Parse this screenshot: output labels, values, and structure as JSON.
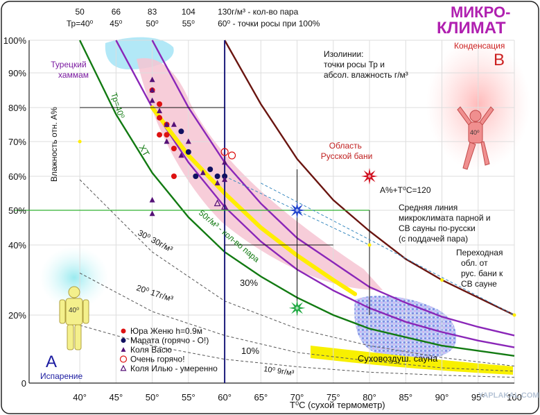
{
  "chart_data": {
    "type": "line",
    "title_line1": "МИКРО-",
    "title_line2": "КЛИМАТ",
    "xlabel": "T⁰C (сухой термометр)",
    "ylabel": "Влажность отн. A%",
    "x_ticks": [
      "40°",
      "45°",
      "50°",
      "55°",
      "60°",
      "65°",
      "70°",
      "75°",
      "80°",
      "85°",
      "90°",
      "95°",
      "100"
    ],
    "y_ticks": [
      "100%",
      "90%",
      "80%",
      "70%",
      "60%",
      "50%",
      "40%",
      "20%",
      "0"
    ],
    "top_ticks": [
      {
        "abs": "50",
        "tp": "Тр=40⁰"
      },
      {
        "abs": "66",
        "tp": "45⁰"
      },
      {
        "abs": "83",
        "tp": "50⁰"
      },
      {
        "abs": "104",
        "tp": "55⁰"
      },
      {
        "abs": "130г/м³ - кол-во пара",
        "tp": "60⁰ - точки росы при 100%"
      }
    ],
    "zones": {
      "turkish": "Турецкий\nхаммам",
      "russian": "Область\nРусской бани",
      "dry_sauna": "Суховоздуш. сауна",
      "condensation_label": "Конденсация",
      "condensation_letter": "B",
      "evaporation_label": "Испарение",
      "evaporation_letter": "A"
    },
    "annotations": {
      "isolines": "Изолинии:\nточки росы Тр и\nабсол. влажность г/м³",
      "sum120": "A%+T⁰C=120",
      "mean_line": "Средняя линия\nмикроклимата парной и\nСВ сауны по-русски\n(с поддачей пара)",
      "transition": "Переходная\nобл. от\nрус. бани к\nСВ сауне",
      "tp40": "Тр=40⁰",
      "xt": "ХТ",
      "fifty": "50г/м³ - кол-во пара",
      "thirty": "30⁰  30г/м³",
      "twenty": "20⁰  17г/м³",
      "ten_dew": "10⁰  9г/м³",
      "pct30": "30%",
      "pct10": "10%",
      "man_temp": "40⁰"
    },
    "legend": [
      {
        "symbol": "dot-red",
        "label": "Юра Женю h=0.9м"
      },
      {
        "symbol": "dot-navy",
        "label": "Марата (горячо - О!)"
      },
      {
        "symbol": "tri-purple",
        "label": "Коля Васю"
      },
      {
        "symbol": "circle-open",
        "label": "Очень горячо!"
      },
      {
        "symbol": "tri-open",
        "label": "Коля Илью - умеренно"
      }
    ],
    "series": [
      {
        "name": "Юра Женю h=0.9м",
        "color": "#dd1111",
        "marker": "dot",
        "points": [
          [
            50,
            85
          ],
          [
            51,
            81
          ],
          [
            51,
            77
          ],
          [
            52,
            75
          ],
          [
            52,
            72
          ],
          [
            51,
            72
          ],
          [
            53,
            68
          ],
          [
            53,
            60
          ]
        ]
      },
      {
        "name": "Марата (горячо - О!)",
        "color": "#101060",
        "marker": "dot",
        "points": [
          [
            54,
            73
          ],
          [
            55,
            67
          ],
          [
            56,
            60
          ],
          [
            58,
            62
          ],
          [
            59,
            60
          ],
          [
            60,
            60
          ]
        ]
      },
      {
        "name": "Коля Васю",
        "color": "#551177",
        "marker": "tri",
        "points": [
          [
            50,
            88
          ],
          [
            50,
            85
          ],
          [
            50,
            82
          ],
          [
            51,
            79
          ],
          [
            52,
            75
          ],
          [
            53,
            75
          ],
          [
            52,
            70
          ],
          [
            50,
            53
          ],
          [
            50,
            49
          ],
          [
            54,
            66
          ],
          [
            55,
            70
          ],
          [
            57,
            61
          ],
          [
            59,
            58
          ],
          [
            60,
            59
          ],
          [
            60,
            64
          ]
        ]
      },
      {
        "name": "Очень горячо!",
        "color": "#dd1111",
        "marker": "circle-open",
        "points": [
          [
            60,
            67
          ],
          [
            61,
            66
          ]
        ]
      },
      {
        "name": "Коля Илью - умеренно",
        "color": "#551177",
        "marker": "tri-open",
        "points": [
          [
            59,
            52
          ],
          [
            60,
            51
          ]
        ]
      }
    ],
    "special_markers": [
      {
        "name": "A%+T⁰C=120",
        "color": "#d01020",
        "x": 80,
        "y": 60
      },
      {
        "name": "blue star",
        "color": "#2244cc",
        "x": 70,
        "y": 50
      },
      {
        "name": "green star",
        "color": "#22aa44",
        "x": 70,
        "y": 22
      }
    ],
    "curves": [
      {
        "name": "Тр=40⁰ (50г/м³)",
        "color": "#127a12",
        "x": [
          40,
          45,
          50,
          55,
          60,
          65,
          70,
          75,
          80,
          85,
          90,
          95,
          100
        ],
        "y": [
          100,
          78,
          61,
          48,
          38,
          31,
          25,
          20,
          16,
          13.5,
          11,
          9.5,
          8
        ]
      },
      {
        "name": "45⁰ (66г/м³)",
        "color": "#8a26b8",
        "x": [
          45,
          50,
          55,
          60,
          65,
          70,
          75,
          80,
          85,
          90,
          95,
          100
        ],
        "y": [
          100,
          80,
          64,
          51,
          41,
          33,
          27,
          22,
          18,
          15,
          12.5,
          10.5
        ]
      },
      {
        "name": "50⁰ (83г/м³)",
        "color": "#8a26b8",
        "x": [
          50,
          55,
          60,
          65,
          70,
          75,
          80,
          85,
          90,
          95,
          100
        ],
        "y": [
          100,
          80,
          64,
          52,
          42,
          35,
          28,
          23.5,
          19.5,
          16.5,
          14
        ]
      },
      {
        "name": "60⁰ (130г/м³)",
        "color": "#6a1510",
        "x": [
          60,
          65,
          70,
          75,
          80,
          85,
          90,
          95,
          100
        ],
        "y": [
          100,
          81,
          65,
          53,
          44,
          36,
          30,
          25,
          20
        ]
      },
      {
        "name": "30⁰ 30г/м³",
        "color": "#555555",
        "x": [
          40,
          50,
          60,
          70,
          80,
          90,
          100
        ],
        "y": [
          59,
          38,
          24,
          16,
          11,
          7.5,
          5
        ]
      },
      {
        "name": "20⁰ 17г/м³",
        "color": "#555555",
        "x": [
          40,
          50,
          60,
          70,
          80,
          90,
          100
        ],
        "y": [
          32,
          21,
          14,
          9,
          6.5,
          4.5,
          3.5
        ]
      },
      {
        "name": "10⁰ 9г/м³",
        "color": "#555555",
        "x": [
          40,
          50,
          60,
          70,
          80,
          90,
          100
        ],
        "y": [
          17,
          11,
          7,
          4.8,
          3.2,
          2.3,
          1.7
        ]
      }
    ],
    "mean_line": {
      "name": "Средняя линия",
      "color": "#ffee00",
      "x": [
        50,
        55,
        60,
        65,
        70,
        75,
        78
      ],
      "y": [
        80,
        66,
        55,
        45,
        37,
        30,
        26
      ]
    },
    "xlim": [
      33,
      100
    ],
    "ylim": [
      0,
      100
    ],
    "grid": true
  },
  "watermark": "YAPLAKAL.COM"
}
